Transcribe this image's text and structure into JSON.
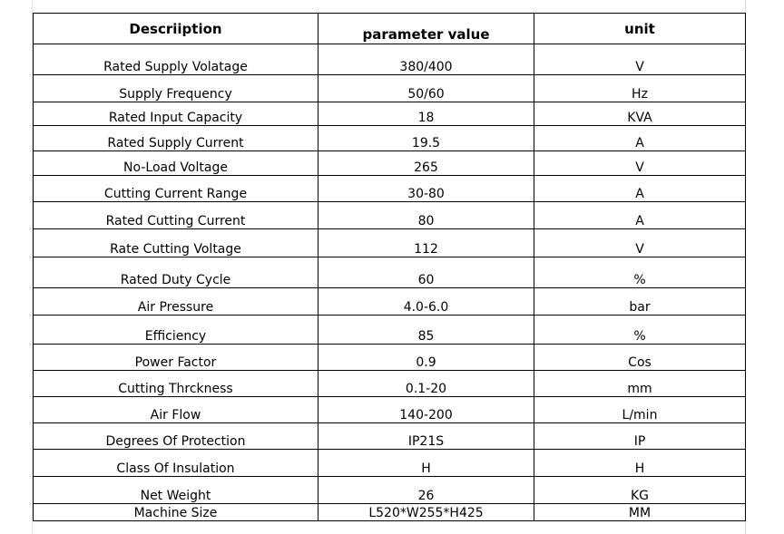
{
  "table": {
    "headers": {
      "description": "Descriiption",
      "parameter": "parameter value",
      "unit": "unit"
    },
    "rows": [
      {
        "desc": "Rated Supply Volatage",
        "value": "380/400",
        "unit": "V"
      },
      {
        "desc": "Supply Frequency",
        "value": "50/60",
        "unit": "Hz"
      },
      {
        "desc": "Rated Input Capacity",
        "value": "18",
        "unit": "KVA"
      },
      {
        "desc": "Rated Supply Current",
        "value": "19.5",
        "unit": "A"
      },
      {
        "desc": "No-Load Voltage",
        "value": "265",
        "unit": "V"
      },
      {
        "desc": "Cutting Current Range",
        "value": "30-80",
        "unit": "A"
      },
      {
        "desc": "Rated Cutting Current",
        "value": "80",
        "unit": "A"
      },
      {
        "desc": "Rate Cutting Voltage",
        "value": "112",
        "unit": "V"
      },
      {
        "desc": "Rated Duty Cycle",
        "value": "60",
        "unit": "%"
      },
      {
        "desc": "Air Pressure",
        "value": "4.0-6.0",
        "unit": "bar"
      },
      {
        "desc": "Efficiency",
        "value": "85",
        "unit": "%"
      },
      {
        "desc": "Power Factor",
        "value": "0.9",
        "unit": "Cos"
      },
      {
        "desc": "Cutting Thrckness",
        "value": "0.1-20",
        "unit": "mm"
      },
      {
        "desc": "Air Flow",
        "value": "140-200",
        "unit": "L/min"
      },
      {
        "desc": "Degrees Of Protection",
        "value": "IP21S",
        "unit": "IP"
      },
      {
        "desc": "Class Of Insulation",
        "value": "H",
        "unit": "H"
      },
      {
        "desc": "Net Weight",
        "value": "26",
        "unit": "KG"
      },
      {
        "desc": "Machine Size",
        "value": "L520*W255*H425",
        "unit": "MM"
      }
    ]
  }
}
